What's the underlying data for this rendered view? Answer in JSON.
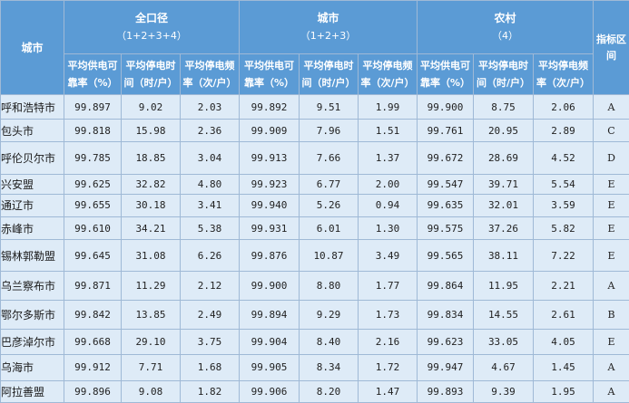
{
  "header": {
    "city": "城市",
    "groups": [
      {
        "title": "全口径",
        "subtitle": "（1+2+3+4）"
      },
      {
        "title": "城市",
        "subtitle": "（1+2+3）"
      },
      {
        "title": "农村",
        "subtitle": "（4）"
      }
    ],
    "grade": "指标区间",
    "metrics": [
      "平均供电可靠率（%）",
      "平均停电时间（时/户）",
      "平均停电频率（次/户）"
    ]
  },
  "rows": [
    {
      "city": "呼和浩特市",
      "v": [
        "99.897",
        "9.02",
        "2.03",
        "99.892",
        "9.51",
        "1.99",
        "99.900",
        "8.75",
        "2.06"
      ],
      "grade": "A"
    },
    {
      "city": "包头市",
      "v": [
        "99.818",
        "15.98",
        "2.36",
        "99.909",
        "7.96",
        "1.51",
        "99.761",
        "20.95",
        "2.89"
      ],
      "grade": "C"
    },
    {
      "city": "呼伦贝尔市",
      "v": [
        "99.785",
        "18.85",
        "3.04",
        "99.913",
        "7.66",
        "1.37",
        "99.672",
        "28.69",
        "4.52"
      ],
      "grade": "D"
    },
    {
      "city": "兴安盟",
      "v": [
        "99.625",
        "32.82",
        "4.80",
        "99.923",
        "6.77",
        "2.00",
        "99.547",
        "39.71",
        "5.54"
      ],
      "grade": "E"
    },
    {
      "city": "通辽市",
      "v": [
        "99.655",
        "30.18",
        "3.41",
        "99.940",
        "5.26",
        "0.94",
        "99.635",
        "32.01",
        "3.59"
      ],
      "grade": "E"
    },
    {
      "city": "赤峰市",
      "v": [
        "99.610",
        "34.21",
        "5.38",
        "99.931",
        "6.01",
        "1.30",
        "99.575",
        "37.26",
        "5.82"
      ],
      "grade": "E"
    },
    {
      "city": "锡林郭勒盟",
      "v": [
        "99.645",
        "31.08",
        "6.26",
        "99.876",
        "10.87",
        "3.49",
        "99.565",
        "38.11",
        "7.22"
      ],
      "grade": "E"
    },
    {
      "city": "乌兰察布市",
      "v": [
        "99.871",
        "11.29",
        "2.12",
        "99.900",
        "8.80",
        "1.77",
        "99.864",
        "11.95",
        "2.21"
      ],
      "grade": "A"
    },
    {
      "city": "鄂尔多斯市",
      "v": [
        "99.842",
        "13.85",
        "2.49",
        "99.894",
        "9.29",
        "1.73",
        "99.834",
        "14.55",
        "2.61"
      ],
      "grade": "B"
    },
    {
      "city": "巴彦淖尔市",
      "v": [
        "99.668",
        "29.10",
        "3.75",
        "99.904",
        "8.40",
        "2.16",
        "99.623",
        "33.05",
        "4.05"
      ],
      "grade": "E"
    },
    {
      "city": "乌海市",
      "v": [
        "99.912",
        "7.71",
        "1.68",
        "99.905",
        "8.34",
        "1.72",
        "99.947",
        "4.67",
        "1.45"
      ],
      "grade": "A"
    },
    {
      "city": "阿拉善盟",
      "v": [
        "99.896",
        "9.08",
        "1.82",
        "99.906",
        "8.20",
        "1.47",
        "99.893",
        "9.39",
        "1.95"
      ],
      "grade": "A"
    }
  ]
}
